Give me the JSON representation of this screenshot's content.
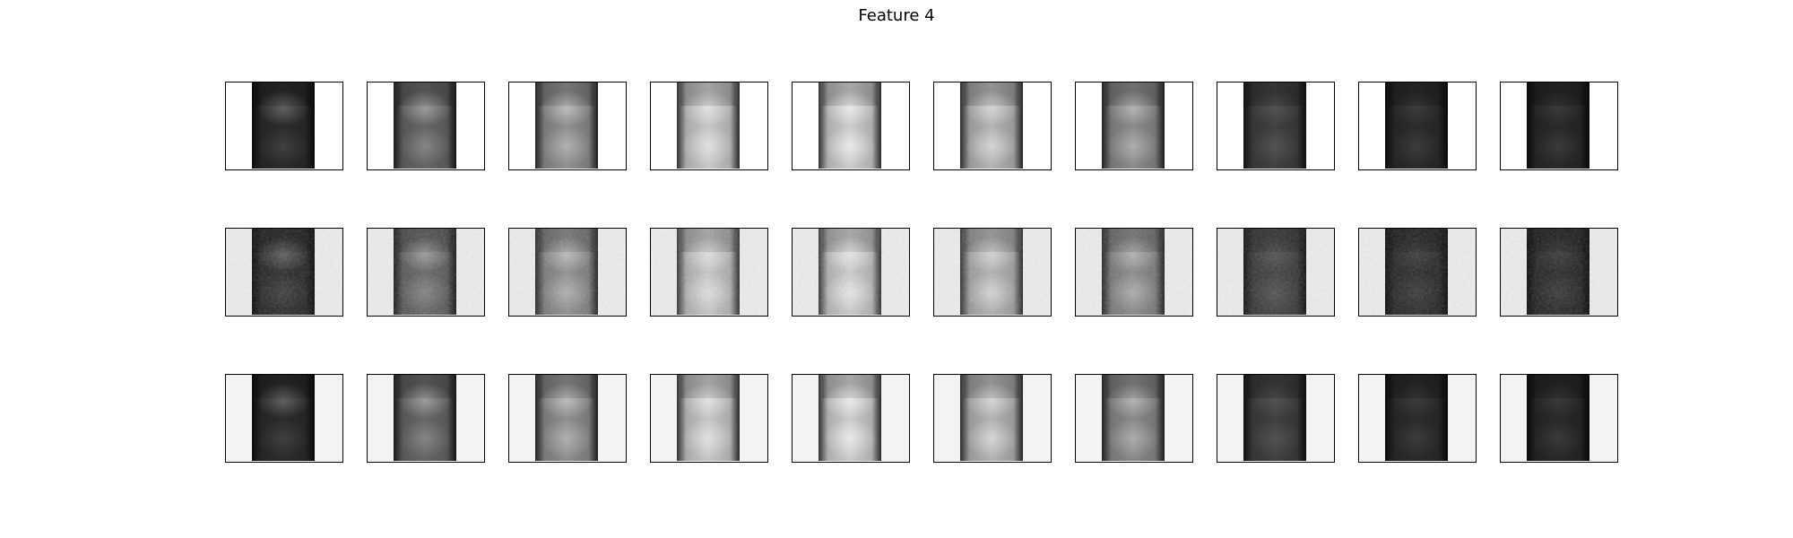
{
  "figure": {
    "title": "Feature 4",
    "rows": 3,
    "cols": 10,
    "row_styles": [
      {
        "background": "#ffffff",
        "noise": 0.0
      },
      {
        "background": "#ececec",
        "noise": 0.16
      },
      {
        "background": "#f3f3f3",
        "noise": 0.0
      }
    ],
    "column_intensity": [
      0.17,
      0.4,
      0.56,
      0.78,
      0.8,
      0.7,
      0.54,
      0.25,
      0.17,
      0.16
    ],
    "upper_blob_strength": [
      0.25,
      0.35,
      0.4,
      0.45,
      0.55,
      0.45,
      0.35,
      0.1,
      0.08,
      0.08
    ],
    "lower_blob_strength": [
      0.1,
      0.2,
      0.3,
      0.45,
      0.55,
      0.45,
      0.3,
      0.1,
      0.08,
      0.08
    ],
    "colors": {
      "frame": "#000000",
      "white": "#ffffff"
    }
  }
}
